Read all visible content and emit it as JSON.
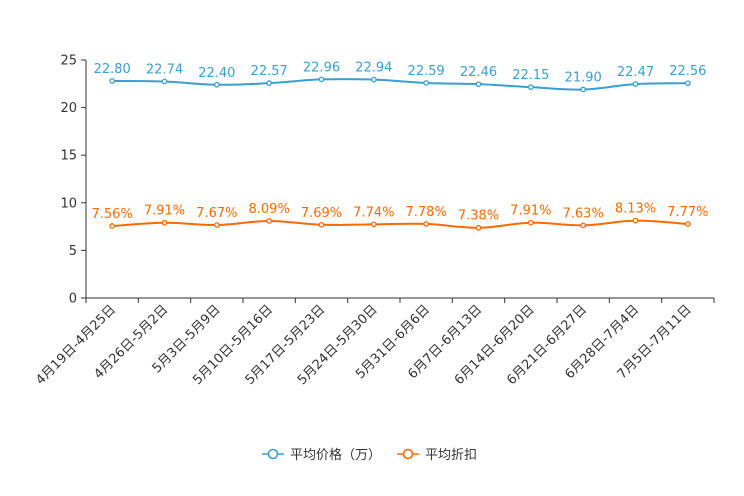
{
  "chart_data": {
    "type": "line",
    "title": "",
    "xlabel": "",
    "ylabel": "",
    "ylim": [
      0,
      25
    ],
    "yticks": [
      0,
      5,
      10,
      15,
      20,
      25
    ],
    "grid": false,
    "legend_position": "bottom-center",
    "categories": [
      "4月19日-4月25日",
      "4月26日-5月2日",
      "5月3日-5月9日",
      "5月10日-5月16日",
      "5月17日-5月23日",
      "5月24日-5月30日",
      "5月31日-6月6日",
      "6月7日-6月13日",
      "6月14日-6月20日",
      "6月21日-6月27日",
      "6月28日-7月4日",
      "7月5日-7月11日"
    ],
    "series": [
      {
        "name": "平均价格（万）",
        "color": "#3a9fd0",
        "values": [
          22.8,
          22.74,
          22.4,
          22.57,
          22.96,
          22.94,
          22.59,
          22.46,
          22.15,
          21.9,
          22.47,
          22.56
        ],
        "labels": [
          "22.80",
          "22.74",
          "22.40",
          "22.57",
          "22.96",
          "22.94",
          "22.59",
          "22.46",
          "22.15",
          "21.90",
          "22.47",
          "22.56"
        ]
      },
      {
        "name": "平均折扣",
        "color": "#ff6a00",
        "values": [
          7.56,
          7.91,
          7.67,
          8.09,
          7.69,
          7.74,
          7.78,
          7.38,
          7.91,
          7.63,
          8.13,
          7.77
        ],
        "labels": [
          "7.56%",
          "7.91%",
          "7.67%",
          "8.09%",
          "7.69%",
          "7.74%",
          "7.78%",
          "7.38%",
          "7.91%",
          "7.63%",
          "8.13%",
          "7.77%"
        ]
      }
    ]
  }
}
